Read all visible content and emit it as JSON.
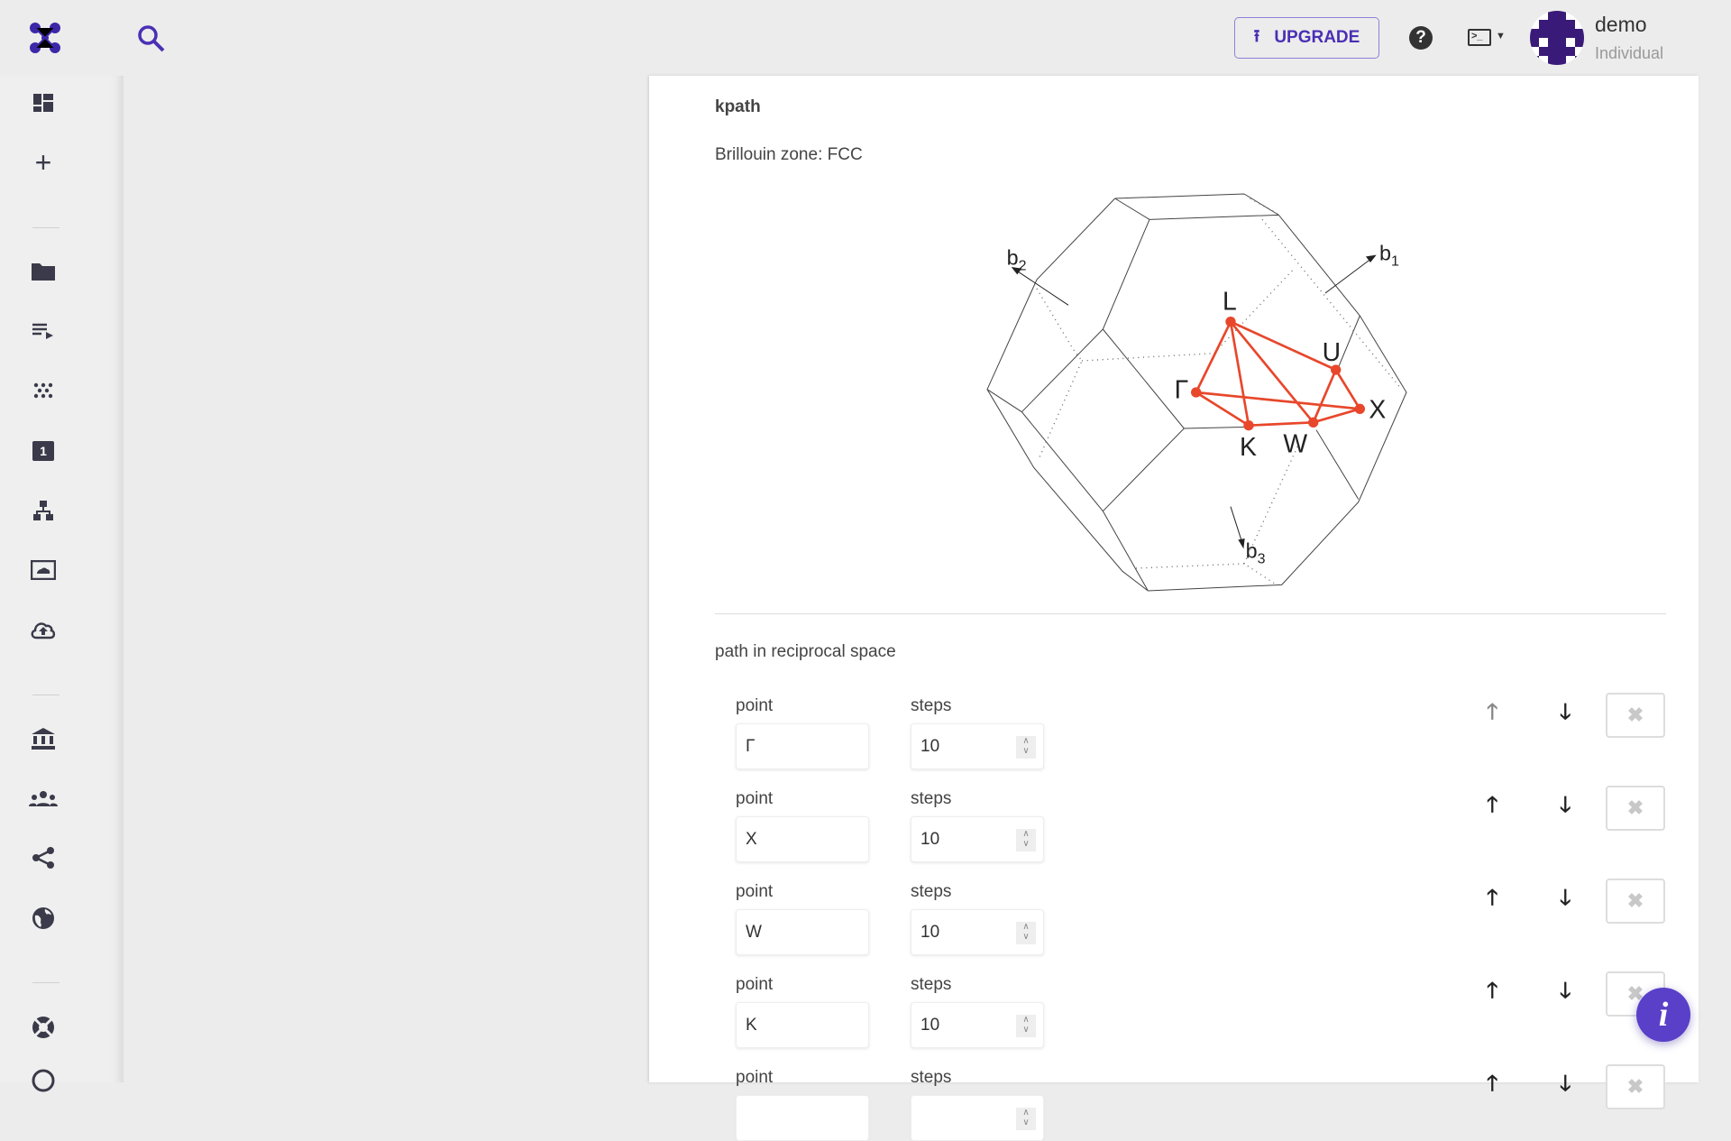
{
  "topbar": {
    "upgrade_label": "UPGRADE",
    "user_name": "demo",
    "user_plan": "Individual",
    "accent": "#4a2fb5"
  },
  "sidebar": {
    "items": [
      "dashboard",
      "create",
      "projects",
      "workflows",
      "materials",
      "jobs",
      "dropbox",
      "cluster",
      "upload",
      "organizations",
      "teams",
      "shared",
      "public",
      "help",
      "settings"
    ]
  },
  "main": {
    "section_title": "kpath",
    "brillouin_label": "Brillouin zone: FCC",
    "diagram": {
      "points": [
        "L",
        "Γ",
        "K",
        "W",
        "U",
        "X"
      ],
      "vectors": {
        "b1": "b",
        "b1_sub": "1",
        "b2": "b",
        "b2_sub": "2",
        "b3": "b",
        "b3_sub": "3"
      },
      "path_color": "#e8472b"
    },
    "path_title": "path in reciprocal space",
    "point_label": "point",
    "steps_label": "steps",
    "rows": [
      {
        "point": "Γ",
        "steps": "10"
      },
      {
        "point": "X",
        "steps": "10"
      },
      {
        "point": "W",
        "steps": "10"
      },
      {
        "point": "K",
        "steps": "10"
      },
      {
        "point": "",
        "steps": ""
      }
    ]
  }
}
